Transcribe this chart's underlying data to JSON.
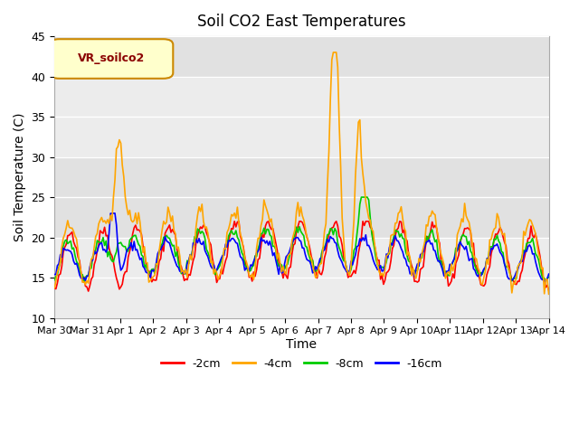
{
  "title": "Soil CO2 East Temperatures",
  "xlabel": "Time",
  "ylabel": "Soil Temperature (C)",
  "ylim": [
    10,
    45
  ],
  "legend_label": "VR_soilco2",
  "series_labels": [
    "-2cm",
    "-4cm",
    "-8cm",
    "-16cm"
  ],
  "series_colors": [
    "#ff0000",
    "#ffa500",
    "#00cc00",
    "#0000ff"
  ],
  "xtick_labels": [
    "Mar 30",
    "Mar 31",
    "Apr 1",
    "Apr 2",
    "Apr 3",
    "Apr 4",
    "Apr 5",
    "Apr 6",
    "Apr 7",
    "Apr 8",
    "Apr 9",
    "Apr 10",
    "Apr 11",
    "Apr 12",
    "Apr 13",
    "Apr 14"
  ],
  "xtick_positions": [
    0,
    1,
    2,
    3,
    4,
    5,
    6,
    7,
    8,
    9,
    10,
    11,
    12,
    13,
    14,
    15
  ],
  "background_color": "#ffffff",
  "plot_bg_color": "#f0f0f0",
  "n_points": 336,
  "days": 15
}
